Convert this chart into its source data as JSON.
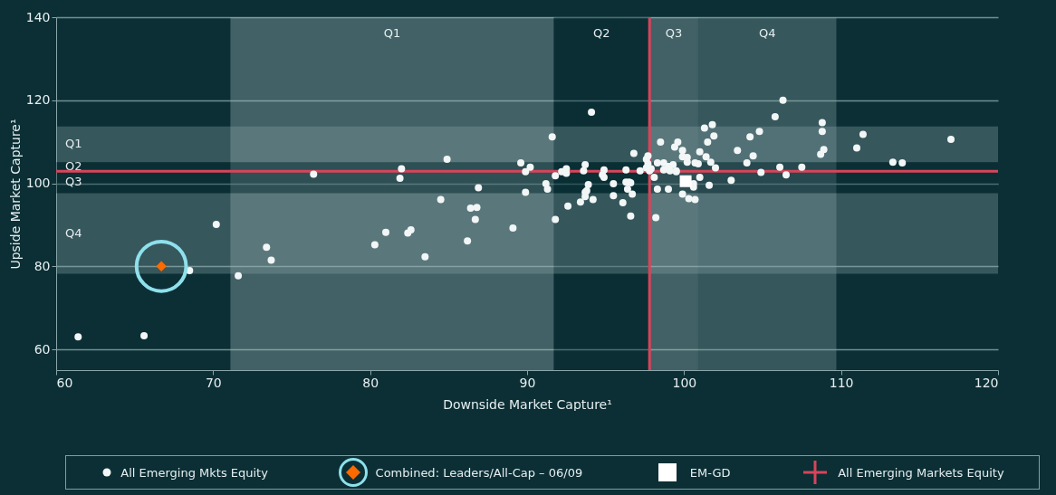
{
  "chart_data": {
    "type": "scatter",
    "xlabel": "Downside Market Capture¹",
    "ylabel": "Upside Market Capture¹",
    "xlim": [
      60,
      120
    ],
    "xticks": [
      60,
      70,
      80,
      90,
      100,
      110,
      120
    ],
    "ylim": [
      55,
      140
    ],
    "yticks": [
      60,
      80,
      100,
      120,
      140
    ],
    "grid": "y",
    "legend": "bottom",
    "series": [
      {
        "name": "All Emerging Mkts Equity",
        "color": "#f2f6f6",
        "marker": "circle",
        "x": [
          61.4,
          65.6,
          70.2,
          73.4,
          73.7,
          71.6,
          76.4,
          81.0,
          80.3,
          68.5,
          94.1,
          91.6,
          84.9,
          82.0,
          81.9,
          89.6,
          90.2,
          89.9,
          91.8,
          91.2,
          91.3,
          89.9,
          86.9,
          84.5,
          86.4,
          86.8,
          86.7,
          89.1,
          86.2,
          83.5,
          82.4,
          82.6,
          92.6,
          91.8,
          92.5,
          92.5,
          92.2,
          93.7,
          93.6,
          94.9,
          94.8,
          94.9,
          93.9,
          93.8,
          93.7,
          93.7,
          93.4,
          94.2,
          95.5,
          95.5,
          96.1,
          96.6,
          96.7,
          96.4,
          96.3,
          96.5,
          96.6,
          96.3,
          96.8,
          97.2,
          97.6,
          97.6,
          97.7,
          97.7,
          97.8,
          97.9,
          98.1,
          98.2,
          98.3,
          98.3,
          98.5,
          98.7,
          98.7,
          99.0,
          99.0,
          99.1,
          99.3,
          99.4,
          99.6,
          99.5,
          99.5,
          99.9,
          99.9,
          99.9,
          100.2,
          100.2,
          100.3,
          100.6,
          100.6,
          100.7,
          100.7,
          100.9,
          101.0,
          101.0,
          101.3,
          101.4,
          101.5,
          101.6,
          106.3,
          105.8,
          101.8,
          101.9,
          104.8,
          104.2,
          108.8,
          108.8,
          111.4,
          117.0,
          103.4,
          104.4,
          108.9,
          108.7,
          111.0,
          101.7,
          104.0,
          102.0,
          106.1,
          107.5,
          104.9,
          106.5,
          113.3,
          113.9,
          103.0
        ],
        "values": [
          63.0,
          63.3,
          90.1,
          84.6,
          81.5,
          77.7,
          102.2,
          88.2,
          85.2,
          79.0,
          117.1,
          111.2,
          105.8,
          103.5,
          101.2,
          104.9,
          103.9,
          102.8,
          101.8,
          99.9,
          98.6,
          97.8,
          98.9,
          96.1,
          94.0,
          94.2,
          91.3,
          89.2,
          86.1,
          82.3,
          88.0,
          88.8,
          94.5,
          91.3,
          103.5,
          102.4,
          102.8,
          104.5,
          103.0,
          103.2,
          102.0,
          101.4,
          99.7,
          98.2,
          97.8,
          96.8,
          95.5,
          96.1,
          99.9,
          97.0,
          95.3,
          92.1,
          97.4,
          98.6,
          100.3,
          100.3,
          100.1,
          103.2,
          107.2,
          103.0,
          103.7,
          105.8,
          106.6,
          104.7,
          103.0,
          103.5,
          101.4,
          91.7,
          98.6,
          104.9,
          109.9,
          104.9,
          103.2,
          104.1,
          98.6,
          103.0,
          104.5,
          108.7,
          109.9,
          103.0,
          102.8,
          106.4,
          107.9,
          97.4,
          106.2,
          105.1,
          96.3,
          99.9,
          99.1,
          96.1,
          104.9,
          104.7,
          107.6,
          101.4,
          113.3,
          106.4,
          109.9,
          99.5,
          120.0,
          116.0,
          114.1,
          111.4,
          112.5,
          111.2,
          114.6,
          112.5,
          111.8,
          110.6,
          107.9,
          106.6,
          108.1,
          107.0,
          108.5,
          105.1,
          104.9,
          103.7,
          103.9,
          103.9,
          102.6,
          102.0,
          105.1,
          104.9,
          100.7
        ]
      },
      {
        "name": "Combined: Leaders/All-Cap – 06/09",
        "color": "#ff6a00",
        "marker": "diamond",
        "x": [
          66.7
        ],
        "values": [
          80.0
        ]
      },
      {
        "name": "EM-GD",
        "color": "#ffffff",
        "marker": "square",
        "x": [
          100.1
        ],
        "values": [
          100.5
        ]
      }
    ],
    "ref_lines": [
      {
        "axis": "x",
        "value": 97.8,
        "color": "#d9445a",
        "label": "All Emerging Markets Equity"
      },
      {
        "axis": "y",
        "value": 102.9,
        "color": "#d9445a"
      }
    ],
    "bands": [
      {
        "axis": "x",
        "from": 71.1,
        "to": 91.7,
        "label": "Q1",
        "color": "#a9c0c3"
      },
      {
        "axis": "x",
        "from": 91.7,
        "to": 97.8,
        "label": "Q2",
        "color": "#0a2e33"
      },
      {
        "axis": "x",
        "from": 97.8,
        "to": 100.9,
        "label": "Q3",
        "color": "#a9c0c3"
      },
      {
        "axis": "x",
        "from": 100.9,
        "to": 109.7,
        "label": "Q4",
        "color": "#86a3a7"
      },
      {
        "axis": "y",
        "from": 105.1,
        "to": 113.7,
        "label": "Q1",
        "color": "#86a3a7"
      },
      {
        "axis": "y",
        "from": 102.9,
        "to": 105.1,
        "label": "Q2",
        "color": "#0a2e33"
      },
      {
        "axis": "y",
        "from": 97.6,
        "to": 102.9,
        "label": "Q3",
        "color": "#0a2e33"
      },
      {
        "axis": "y",
        "from": 78.2,
        "to": 97.6,
        "label": "Q4",
        "color": "#86a3a7"
      }
    ]
  }
}
